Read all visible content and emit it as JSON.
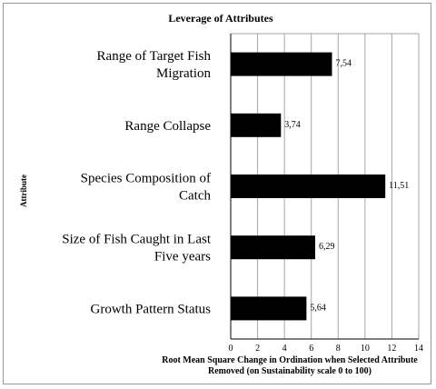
{
  "chart_data": {
    "type": "bar",
    "orientation": "horizontal",
    "title": "Leverage of Attributes",
    "ylabel": "Attribute",
    "xlabel_lines": [
      "Root Mean Square Change in Ordination when Selected Attribute",
      "Removed (on Sustainability  scale 0 to 100)"
    ],
    "categories": [
      [
        "Range of Target Fish",
        "Migration"
      ],
      [
        "Range Collapse"
      ],
      [
        "Species Composition of",
        "Catch"
      ],
      [
        "Size of Fish Caught in Last",
        "Five years"
      ],
      [
        "Growth Pattern Status"
      ]
    ],
    "values": [
      7.54,
      3.74,
      11.51,
      6.29,
      5.64
    ],
    "value_labels": [
      "7,54",
      "3,74",
      "11,51",
      "6,29",
      "5,64"
    ],
    "xlim": [
      0,
      14
    ],
    "xticks": [
      0,
      2,
      4,
      6,
      8,
      10,
      12,
      14
    ],
    "grid": true,
    "bar_color": "#000000",
    "grid_color": "#a6a6a6"
  }
}
